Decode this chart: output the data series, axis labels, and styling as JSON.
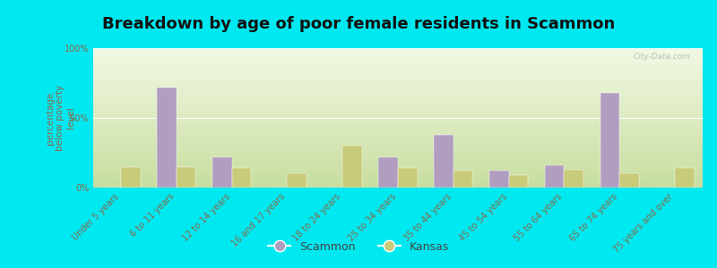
{
  "title": "Breakdown by age of poor female residents in Scammon",
  "ylabel": "percentage\nbelow poverty\nlevel",
  "categories": [
    "Under 5 years",
    "6 to 11 years",
    "12 to 14 years",
    "16 and 17 years",
    "18 to 24 years",
    "25 to 34 years",
    "35 to 44 years",
    "45 to 54 years",
    "55 to 64 years",
    "65 to 74 years",
    "75 years and over"
  ],
  "scammon_values": [
    0,
    72,
    22,
    0,
    0,
    22,
    38,
    12,
    16,
    68,
    0
  ],
  "kansas_values": [
    15,
    15,
    14,
    10,
    30,
    14,
    12,
    9,
    13,
    10,
    14
  ],
  "scammon_color": "#b09dc0",
  "kansas_color": "#c8cc7a",
  "outer_bg": "#00e8f0",
  "ylim": [
    0,
    100
  ],
  "yticks": [
    0,
    50,
    100
  ],
  "ytick_labels": [
    "0%",
    "50%",
    "100%"
  ],
  "bar_width": 0.35,
  "title_fontsize": 13,
  "axis_label_fontsize": 7.5,
  "tick_fontsize": 7,
  "legend_fontsize": 9,
  "watermark": "City-Data.com"
}
